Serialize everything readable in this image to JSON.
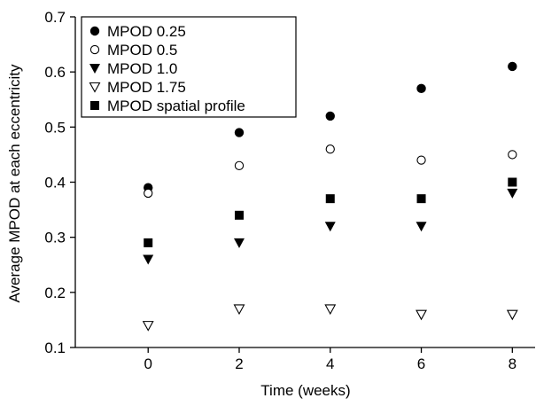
{
  "chart_data": {
    "type": "scatter",
    "title": "",
    "xlabel": "Time (weeks)",
    "ylabel": "Average MPOD at each eccentricity",
    "xlim": [
      -1.6,
      8.5
    ],
    "ylim": [
      0.1,
      0.7
    ],
    "x_ticks": [
      0,
      2,
      4,
      6,
      8
    ],
    "x_tick_labels": [
      "0",
      "2",
      "4",
      "6",
      "8"
    ],
    "y_ticks": [
      0.1,
      0.2,
      0.3,
      0.4,
      0.5,
      0.6,
      0.7
    ],
    "y_tick_labels": [
      "0.1",
      "0.2",
      "0.3",
      "0.4",
      "0.5",
      "0.6",
      "0.7"
    ],
    "grid": false,
    "legend_position": "top-left",
    "x": [
      0,
      2,
      4,
      6,
      8
    ],
    "series": [
      {
        "name": "MPOD 0.25",
        "marker": "filled-circle",
        "values": [
          0.39,
          0.49,
          0.52,
          0.57,
          0.61
        ]
      },
      {
        "name": "MPOD 0.5",
        "marker": "open-circle",
        "values": [
          0.38,
          0.43,
          0.46,
          0.44,
          0.45
        ]
      },
      {
        "name": "MPOD 1.0",
        "marker": "filled-triangle-down",
        "values": [
          0.26,
          0.29,
          0.32,
          0.32,
          0.38
        ]
      },
      {
        "name": "MPOD 1.75",
        "marker": "open-triangle-down",
        "values": [
          0.14,
          0.17,
          0.17,
          0.16,
          0.16
        ]
      },
      {
        "name": "MPOD spatial profile",
        "marker": "filled-square",
        "values": [
          0.29,
          0.34,
          0.37,
          0.37,
          0.4
        ]
      }
    ]
  }
}
